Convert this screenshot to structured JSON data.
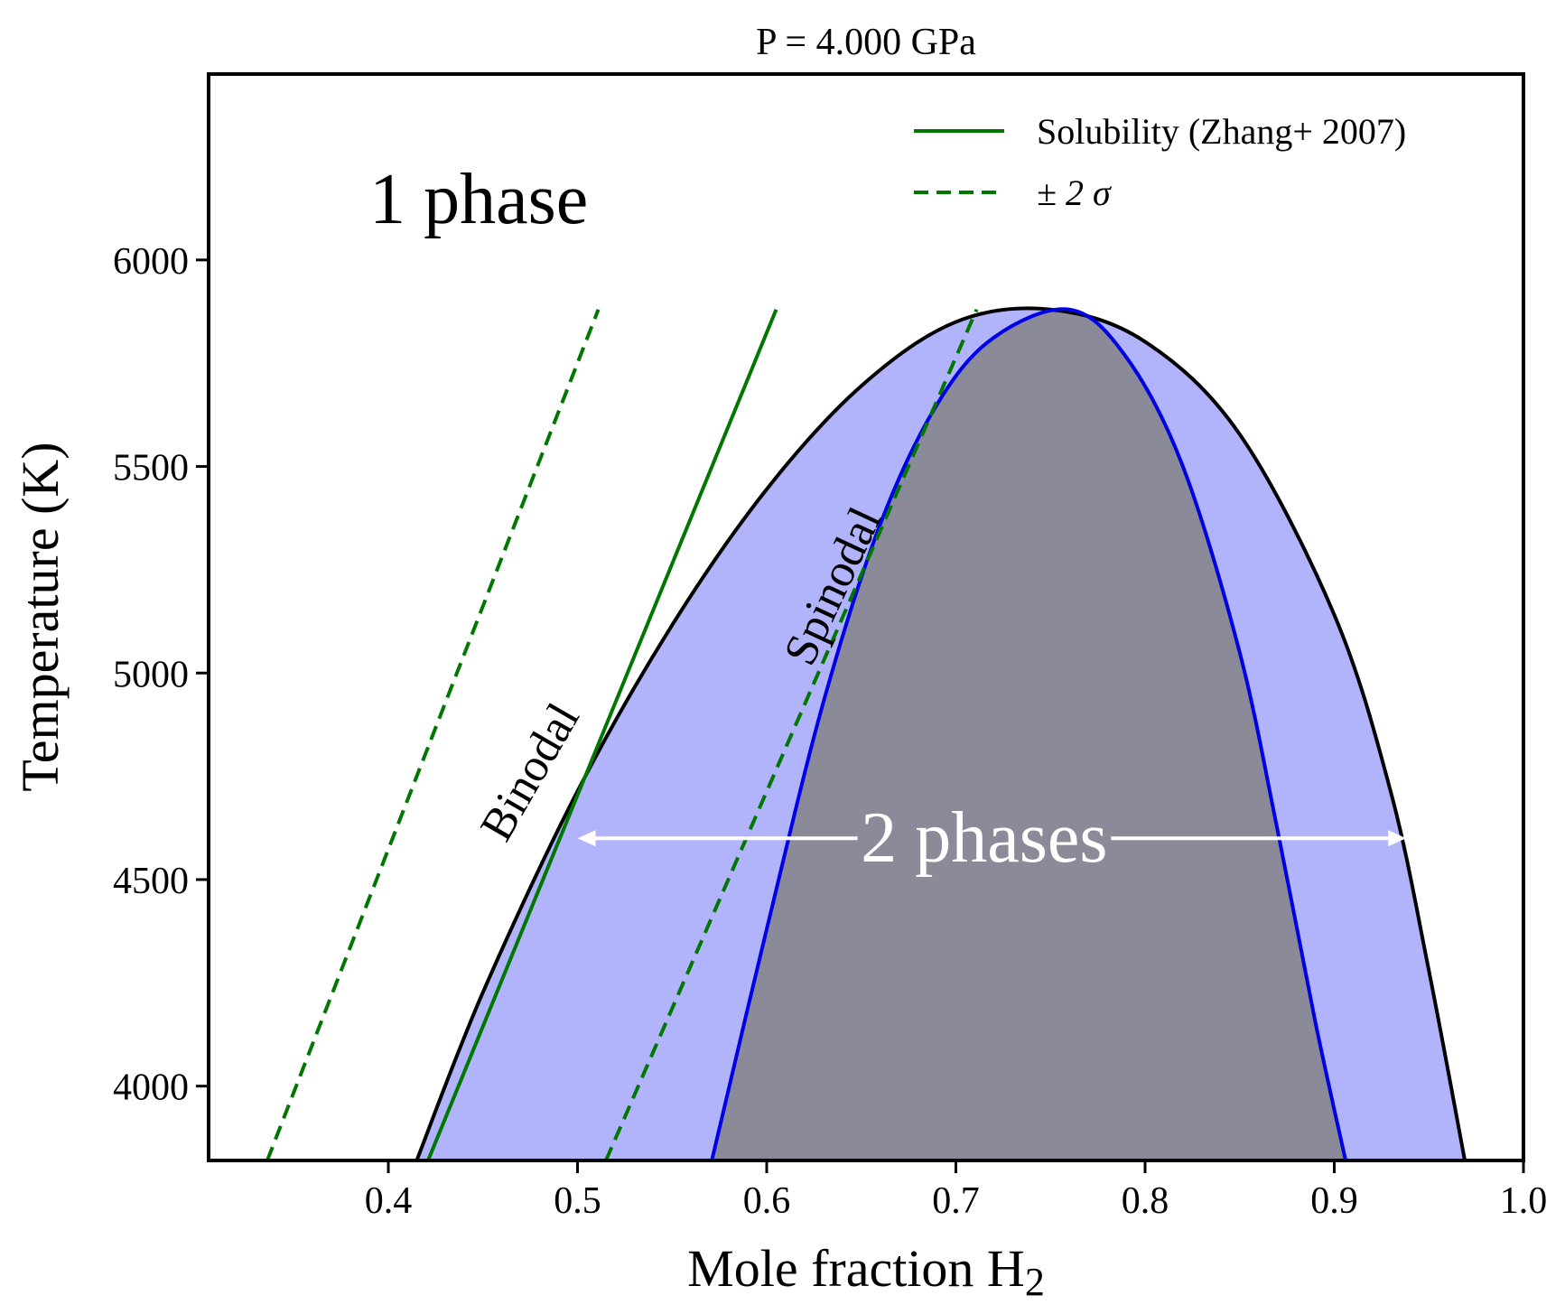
{
  "chart_data": {
    "type": "line",
    "title": "P = 4.000 GPa",
    "xlabel_main": "Mole fraction H",
    "xlabel_sub": "2",
    "ylabel": "Temperature (K)",
    "xlim": [
      0.305,
      1.0
    ],
    "ylim": [
      3820,
      6450
    ],
    "xticks": [
      0.4,
      0.5,
      0.6,
      0.7,
      0.8,
      0.9,
      1.0
    ],
    "xtick_labels": [
      "0.4",
      "0.5",
      "0.6",
      "0.7",
      "0.8",
      "0.9",
      "1.0"
    ],
    "yticks": [
      4000,
      4500,
      5000,
      5500,
      6000
    ],
    "ytick_labels": [
      "4000",
      "4500",
      "5000",
      "5500",
      "6000"
    ],
    "grid": false,
    "legend_position": "top-right",
    "legend": [
      {
        "label": "Solubility (Zhang+ 2007)",
        "style": "solid",
        "color": "#007800"
      },
      {
        "label": "± 2 σ",
        "style": "dashed",
        "color": "#007800"
      }
    ],
    "colors": {
      "binodal": "#000000",
      "spinodal": "#0000e6",
      "binodal_fill": "#b1b3fb",
      "spinodal_fill": "#8b8a98",
      "solubility": "#007800",
      "arrow": "#ffffff"
    },
    "series": [
      {
        "name": "Binodal",
        "color": "#000000",
        "points": [
          [
            0.415,
            3820
          ],
          [
            0.45,
            4227
          ],
          [
            0.5,
            4714
          ],
          [
            0.55,
            5116
          ],
          [
            0.6,
            5445
          ],
          [
            0.65,
            5695
          ],
          [
            0.7,
            5850
          ],
          [
            0.75,
            5880
          ],
          [
            0.8,
            5802
          ],
          [
            0.85,
            5578
          ],
          [
            0.9,
            5141
          ],
          [
            0.93,
            4710
          ],
          [
            0.95,
            4280
          ],
          [
            0.969,
            3820
          ]
        ]
      },
      {
        "name": "Spinodal",
        "color": "#0000e6",
        "points": [
          [
            0.571,
            3820
          ],
          [
            0.6,
            4380
          ],
          [
            0.63,
            4930
          ],
          [
            0.66,
            5360
          ],
          [
            0.69,
            5650
          ],
          [
            0.72,
            5812
          ],
          [
            0.76,
            5880
          ],
          [
            0.79,
            5765
          ],
          [
            0.82,
            5500
          ],
          [
            0.85,
            5050
          ],
          [
            0.87,
            4620
          ],
          [
            0.89,
            4155
          ],
          [
            0.906,
            3820
          ]
        ]
      },
      {
        "name": "Solubility (Zhang+ 2007)",
        "style": "solid",
        "color": "#007800",
        "points": [
          [
            0.421,
            3820
          ],
          [
            0.605,
            5880
          ]
        ]
      },
      {
        "name": "+2 sigma",
        "style": "dashed",
        "color": "#007800",
        "points": [
          [
            0.515,
            3820
          ],
          [
            0.711,
            5880
          ]
        ]
      },
      {
        "name": "-2 sigma",
        "style": "dashed",
        "color": "#007800",
        "points": [
          [
            0.336,
            3820
          ],
          [
            0.511,
            5880
          ]
        ]
      }
    ],
    "annotations": {
      "one_phase": {
        "text": "1 phase",
        "x": 0.39,
        "y": 6150
      },
      "two_phases": {
        "text": "2 phases",
        "x": 0.715,
        "y": 4600
      },
      "binodal_label": {
        "text": "Binodal",
        "x": 0.475,
        "y": 4760,
        "angle_deg": -60
      },
      "spinodal_label": {
        "text": "Spinodal",
        "x": 0.635,
        "y": 5210,
        "angle_deg": -65
      },
      "arrow": {
        "y": 4600,
        "x_start": 0.5,
        "x_end": 0.938,
        "gap_left": 0.648,
        "gap_right": 0.782
      }
    }
  }
}
